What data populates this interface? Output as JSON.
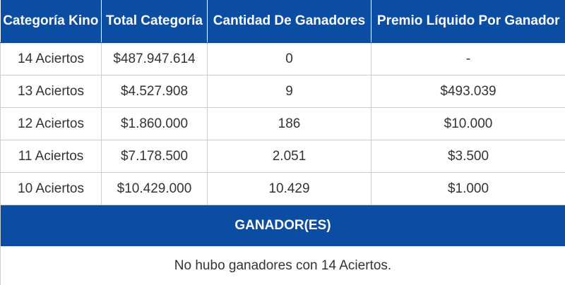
{
  "table": {
    "headers": [
      "Categoría Kino",
      "Total Categoría",
      "Cantidad De Ganadores",
      "Premio Líquido Por Ganador"
    ],
    "rows": [
      [
        "14 Aciertos",
        "$487.947.614",
        "0",
        "-"
      ],
      [
        "13 Aciertos",
        "$4.527.908",
        "9",
        "$493.039"
      ],
      [
        "12 Aciertos",
        "$1.860.000",
        "186",
        "$10.000"
      ],
      [
        "11 Aciertos",
        "$7.178.500",
        "2.051",
        "$3.500"
      ],
      [
        "10 Aciertos",
        "$10.429.000",
        "10.429",
        "$1.000"
      ]
    ],
    "winners_heading": "GANADOR(ES)",
    "winners_note": "No hubo ganadores con 14 Aciertos."
  },
  "colors": {
    "header_background": "#0a4da2",
    "header_text": "#ffffff",
    "cell_text": "#333333",
    "grid_border": "#cccccc"
  }
}
